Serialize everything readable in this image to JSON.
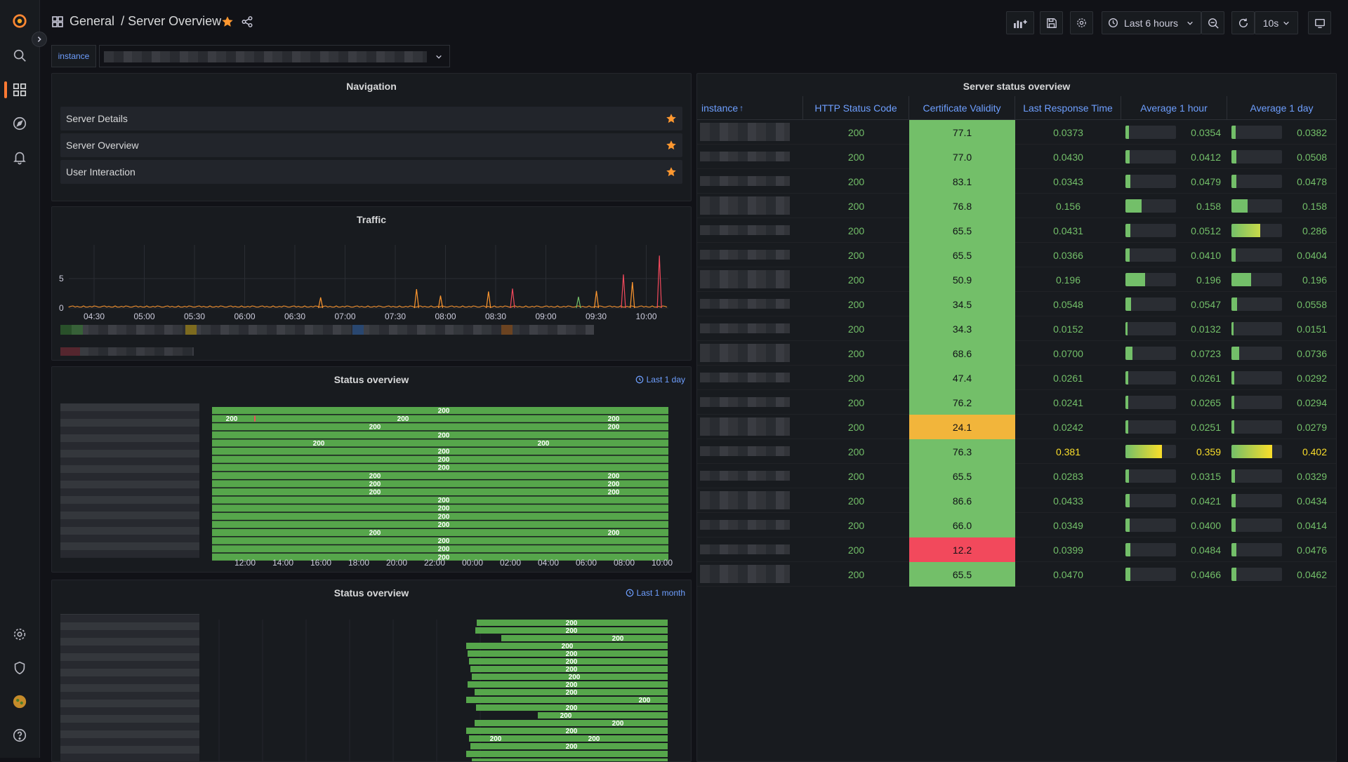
{
  "breadcrumb": {
    "folder": "General",
    "separator": "/",
    "dashboard": "Server Overview"
  },
  "toolbar": {
    "time_range": "Last 6 hours",
    "refresh_interval": "10s"
  },
  "variable": {
    "label": "instance"
  },
  "navigation": {
    "title": "Navigation",
    "items": [
      {
        "label": "Server Details"
      },
      {
        "label": "Server Overview"
      },
      {
        "label": "User Interaction"
      }
    ]
  },
  "traffic": {
    "title": "Traffic",
    "chart_data": {
      "type": "line",
      "y_ticks": [
        "0",
        "5"
      ],
      "x_ticks": [
        "04:30",
        "05:00",
        "05:30",
        "06:00",
        "06:30",
        "07:00",
        "07:30",
        "08:00",
        "08:30",
        "09:00",
        "09:30",
        "10:00"
      ],
      "ylim": [
        0,
        10
      ],
      "grid": true,
      "spikes": [
        {
          "t": 0.42,
          "v": 1.8,
          "c": "#ff9830"
        },
        {
          "t": 0.58,
          "v": 3.2,
          "c": "#ff9830"
        },
        {
          "t": 0.62,
          "v": 2.1,
          "c": "#ff9830"
        },
        {
          "t": 0.7,
          "v": 2.8,
          "c": "#ff9830"
        },
        {
          "t": 0.74,
          "v": 3.3,
          "c": "#f2495c"
        },
        {
          "t": 0.85,
          "v": 1.9,
          "c": "#73bf69"
        },
        {
          "t": 0.88,
          "v": 2.9,
          "c": "#ff9830"
        },
        {
          "t": 0.925,
          "v": 5.7,
          "c": "#f2495c"
        },
        {
          "t": 0.94,
          "v": 4.4,
          "c": "#ff9830"
        },
        {
          "t": 0.985,
          "v": 8.9,
          "c": "#f2495c"
        }
      ]
    }
  },
  "status_day": {
    "title": "Status overview",
    "range": "Last 1 day",
    "x_ticks": [
      "12:00",
      "14:00",
      "16:00",
      "18:00",
      "20:00",
      "22:00",
      "00:00",
      "02:00",
      "04:00",
      "06:00",
      "08:00",
      "10:00"
    ],
    "value_label": "200"
  },
  "status_month": {
    "title": "Status overview",
    "range": "Last 1 month",
    "value_label": "200"
  },
  "server_table": {
    "title": "Server status overview",
    "columns": [
      "instance",
      "HTTP Status Code",
      "Certificate Validity",
      "Last Response Time",
      "Average 1 hour",
      "Average 1 day"
    ],
    "sort_indicator": "↑",
    "rows": [
      {
        "code": "200",
        "cert": "77.1",
        "last": "0.0373",
        "h1": "0.0354",
        "d1": "0.0382"
      },
      {
        "code": "200",
        "cert": "77.0",
        "last": "0.0430",
        "h1": "0.0412",
        "d1": "0.0508"
      },
      {
        "code": "200",
        "cert": "83.1",
        "last": "0.0343",
        "h1": "0.0479",
        "d1": "0.0478"
      },
      {
        "code": "200",
        "cert": "76.8",
        "last": "0.156",
        "h1": "0.158",
        "d1": "0.158"
      },
      {
        "code": "200",
        "cert": "65.5",
        "last": "0.0431",
        "h1": "0.0512",
        "d1": "0.286"
      },
      {
        "code": "200",
        "cert": "65.5",
        "last": "0.0366",
        "h1": "0.0410",
        "d1": "0.0404"
      },
      {
        "code": "200",
        "cert": "50.9",
        "last": "0.196",
        "h1": "0.196",
        "d1": "0.196"
      },
      {
        "code": "200",
        "cert": "34.5",
        "last": "0.0548",
        "h1": "0.0547",
        "d1": "0.0558"
      },
      {
        "code": "200",
        "cert": "34.3",
        "last": "0.0152",
        "h1": "0.0132",
        "d1": "0.0151"
      },
      {
        "code": "200",
        "cert": "68.6",
        "last": "0.0700",
        "h1": "0.0723",
        "d1": "0.0736"
      },
      {
        "code": "200",
        "cert": "47.4",
        "last": "0.0261",
        "h1": "0.0261",
        "d1": "0.0292"
      },
      {
        "code": "200",
        "cert": "76.2",
        "last": "0.0241",
        "h1": "0.0265",
        "d1": "0.0294"
      },
      {
        "code": "200",
        "cert": "24.1",
        "last": "0.0242",
        "h1": "0.0251",
        "d1": "0.0279",
        "certColor": "#f2b53b",
        "certText": "#111217"
      },
      {
        "code": "200",
        "cert": "76.3",
        "last": "0.381",
        "h1": "0.359",
        "d1": "0.402",
        "lastColor": "#fade2a"
      },
      {
        "code": "200",
        "cert": "65.5",
        "last": "0.0283",
        "h1": "0.0315",
        "d1": "0.0329"
      },
      {
        "code": "200",
        "cert": "86.6",
        "last": "0.0433",
        "h1": "0.0421",
        "d1": "0.0434"
      },
      {
        "code": "200",
        "cert": "66.0",
        "last": "0.0349",
        "h1": "0.0400",
        "d1": "0.0414"
      },
      {
        "code": "200",
        "cert": "12.2",
        "last": "0.0399",
        "h1": "0.0484",
        "d1": "0.0476",
        "certColor": "#f2495c"
      },
      {
        "code": "200",
        "cert": "65.5",
        "last": "0.0470",
        "h1": "0.0466",
        "d1": "0.0462"
      }
    ]
  },
  "colors": {
    "accent": "#ff9830",
    "good": "#73bf69",
    "warn": "#f2b53b",
    "bad": "#f2495c",
    "link": "#6e9fff"
  }
}
